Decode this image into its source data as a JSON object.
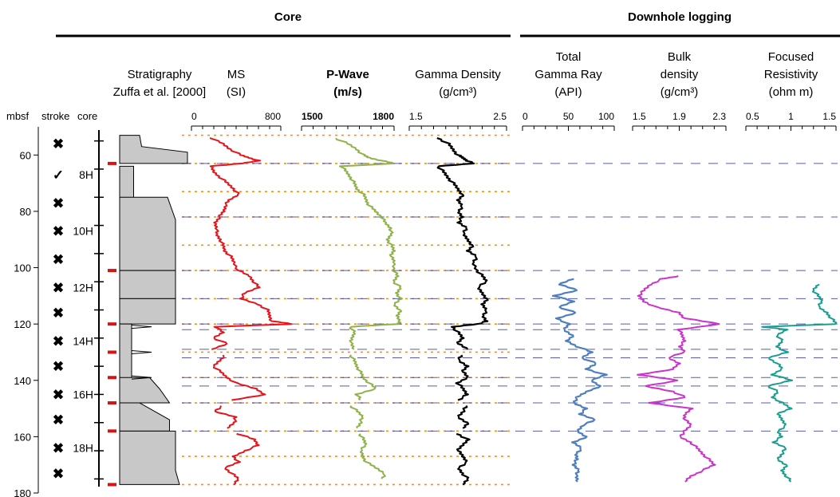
{
  "groups": {
    "core": "Core",
    "downhole": "Downhole logging"
  },
  "left_headers": {
    "depth": "mbsf",
    "stroke": "stroke",
    "core": "core"
  },
  "strat_header": {
    "line1": "Stratigraphy",
    "line2": "Zuffa et al. [2000]"
  },
  "depth_axis": {
    "min": 50,
    "max": 180,
    "ticks": [
      60,
      80,
      100,
      120,
      140,
      160,
      180
    ]
  },
  "stroke_marks": [
    {
      "depth": 56,
      "symbol": "✖"
    },
    {
      "depth": 67,
      "symbol": "✓"
    },
    {
      "depth": 77,
      "symbol": "✖"
    },
    {
      "depth": 87,
      "symbol": "✖"
    },
    {
      "depth": 97,
      "symbol": "✖"
    },
    {
      "depth": 107,
      "symbol": "✖"
    },
    {
      "depth": 116,
      "symbol": "✖"
    },
    {
      "depth": 126,
      "symbol": "✖"
    },
    {
      "depth": 135,
      "symbol": "✖"
    },
    {
      "depth": 145,
      "symbol": "✖"
    },
    {
      "depth": 154,
      "symbol": "✖"
    },
    {
      "depth": 164,
      "symbol": "✖"
    },
    {
      "depth": 173,
      "symbol": "✖"
    }
  ],
  "core_labels": [
    {
      "depth": 67,
      "label": "8H"
    },
    {
      "depth": 87,
      "label": "10H"
    },
    {
      "depth": 107,
      "label": "12H"
    },
    {
      "depth": 126,
      "label": "14H"
    },
    {
      "depth": 145,
      "label": "16H"
    },
    {
      "depth": 164,
      "label": "18H"
    }
  ],
  "core_breaks": [
    63,
    101,
    120,
    130,
    139,
    148,
    158,
    177
  ],
  "orange_depths": [
    53,
    63,
    73,
    82,
    92,
    101,
    111,
    120,
    130,
    139,
    148,
    158,
    167,
    177
  ],
  "blue_depths": [
    63,
    82,
    101,
    111,
    120,
    122,
    129,
    132,
    139,
    142,
    148,
    158
  ],
  "colors": {
    "ms": "#e8141b",
    "pwave": "#8fb34a",
    "gamma_density": "#000000",
    "gamma_ray": "#4f7fbd",
    "bulk_density": "#cc33cc",
    "resistivity": "#1a9e8f",
    "orange": "#f0922b",
    "blue": "#3b3fa8",
    "strat_fill": "#c8c8c8",
    "core_break": "#e01010"
  },
  "tracks": [
    {
      "key": "ms",
      "title_lines": [
        "MS",
        "(SI)"
      ],
      "bold": false,
      "ticks": [
        "0",
        "800"
      ],
      "range": [
        0,
        800
      ]
    },
    {
      "key": "pwave",
      "title_lines": [
        "P-Wave",
        "(m/s)"
      ],
      "bold": true,
      "ticks": [
        "1500",
        "1800"
      ],
      "range": [
        1500,
        1800
      ]
    },
    {
      "key": "gamma_density",
      "title_lines": [
        "Gamma Density",
        "(g/cm³)"
      ],
      "bold": false,
      "ticks": [
        "1.5",
        "2.5"
      ],
      "range": [
        1.5,
        2.5
      ]
    },
    {
      "key": "gamma_ray",
      "title_lines": [
        "Total",
        "Gamma Ray",
        "(API)"
      ],
      "bold": false,
      "ticks": [
        "0",
        "50",
        "100"
      ],
      "range": [
        0,
        100
      ]
    },
    {
      "key": "bulk_density",
      "title_lines": [
        "Bulk",
        "density",
        "(g/cm³)"
      ],
      "bold": false,
      "ticks": [
        "1.5",
        "1.9",
        "2.3"
      ],
      "range": [
        1.5,
        2.3
      ]
    },
    {
      "key": "resistivity",
      "title_lines": [
        "Focused",
        "Resistivity",
        "(ohm m)"
      ],
      "bold": false,
      "ticks": [
        "0.5",
        "1",
        "1.5"
      ],
      "range": [
        0.5,
        1.5
      ]
    }
  ],
  "chart_data": {
    "type": "line",
    "y_axis": {
      "label": "mbsf",
      "range": [
        50,
        180
      ],
      "inverted": true
    },
    "series": [
      {
        "name": "MS",
        "depth": [
          54,
          56,
          58,
          60,
          61,
          62,
          63,
          64,
          66,
          68,
          70,
          72,
          74,
          76,
          78,
          80,
          82,
          84,
          86,
          88,
          90,
          92,
          94,
          96,
          98,
          101,
          103,
          105,
          107,
          109,
          111,
          113,
          115,
          117,
          119,
          120,
          121,
          123,
          125,
          127,
          129,
          131,
          133,
          135,
          137,
          139,
          141,
          143,
          145,
          147,
          149,
          151,
          153,
          155,
          157,
          159,
          161,
          163,
          165,
          167,
          169,
          171,
          173,
          175,
          177
        ],
        "values": [
          180,
          280,
          350,
          440,
          520,
          600,
          450,
          170,
          200,
          260,
          320,
          380,
          420,
          340,
          300,
          290,
          250,
          210,
          230,
          220,
          260,
          280,
          300,
          350,
          380,
          420,
          520,
          560,
          600,
          480,
          440,
          600,
          680,
          700,
          720,
          900,
          220,
          280,
          200,
          320,
          180,
          300,
          250,
          200,
          260,
          320,
          400,
          580,
          660,
          360,
          280,
          200,
          400,
          380,
          320,
          420,
          560,
          600,
          480,
          380,
          420,
          300,
          360,
          420,
          380
        ]
      },
      {
        "name": "P-Wave",
        "depth": [
          54,
          56,
          58,
          60,
          61,
          62,
          63,
          64,
          66,
          68,
          70,
          72,
          74,
          76,
          78,
          80,
          82,
          84,
          86,
          88,
          90,
          92,
          94,
          96,
          98,
          101,
          103,
          105,
          107,
          109,
          111,
          113,
          115,
          117,
          119,
          120,
          121,
          123,
          125,
          127,
          129,
          131,
          133,
          135,
          137,
          139,
          141,
          143,
          145,
          147,
          149,
          151,
          153,
          155,
          157,
          159,
          161,
          163,
          165,
          167,
          169,
          171,
          173,
          175
        ],
        "values": [
          1610,
          1650,
          1680,
          1700,
          1720,
          1760,
          1800,
          1630,
          1645,
          1660,
          1670,
          1680,
          1700,
          1710,
          1720,
          1740,
          1760,
          1770,
          1790,
          1790,
          1780,
          1790,
          1800,
          1790,
          1800,
          1800,
          1810,
          1800,
          1820,
          1810,
          1820,
          1800,
          1820,
          1810,
          1820,
          1810,
          1660,
          1670,
          1665,
          1660,
          1670,
          1660,
          1670,
          1680,
          1690,
          1700,
          1720,
          1740,
          1680,
          1690,
          1660,
          1680,
          1700,
          1690,
          1680,
          1690,
          1700,
          1710,
          1690,
          1700,
          1710,
          1740,
          1770,
          1760
        ]
      },
      {
        "name": "Gamma Density",
        "depth": [
          54,
          56,
          58,
          60,
          61,
          62,
          63,
          64,
          66,
          68,
          70,
          72,
          74,
          76,
          78,
          80,
          82,
          84,
          86,
          88,
          90,
          92,
          94,
          96,
          98,
          101,
          103,
          105,
          107,
          109,
          111,
          113,
          115,
          117,
          119,
          120,
          121,
          123,
          125,
          127,
          129,
          131,
          133,
          135,
          137,
          139,
          141,
          143,
          145,
          147,
          149,
          151,
          153,
          155,
          157,
          159,
          161,
          163,
          165,
          167,
          169,
          171,
          173,
          175,
          177
        ],
        "values": [
          1.8,
          1.9,
          1.95,
          2.0,
          2.05,
          2.1,
          2.15,
          1.8,
          1.85,
          1.9,
          1.95,
          2.0,
          2.05,
          2.0,
          2.05,
          2.0,
          2.05,
          2.0,
          2.1,
          2.05,
          2.1,
          2.15,
          2.1,
          2.2,
          2.15,
          2.2,
          2.25,
          2.3,
          2.2,
          2.25,
          2.3,
          2.25,
          2.3,
          2.25,
          2.3,
          2.2,
          1.95,
          2.0,
          2.05,
          2.0,
          2.1,
          2.05,
          2.0,
          2.1,
          2.05,
          2.1,
          2.0,
          2.05,
          2.1,
          2.0,
          2.1,
          2.05,
          2.0,
          2.1,
          2.05,
          2.0,
          2.1,
          2.05,
          2.0,
          2.05,
          2.1,
          2.0,
          2.05,
          2.1,
          2.05
        ]
      },
      {
        "name": "Total Gamma Ray",
        "depth": [
          104,
          106,
          108,
          110,
          112,
          114,
          116,
          118,
          120,
          122,
          124,
          126,
          128,
          130,
          132,
          134,
          136,
          138,
          140,
          142,
          144,
          146,
          148,
          150,
          152,
          154,
          156,
          158,
          160,
          162,
          164,
          166,
          168,
          170,
          172,
          174,
          176
        ],
        "values": [
          55,
          40,
          60,
          35,
          55,
          40,
          58,
          38,
          50,
          45,
          55,
          48,
          60,
          75,
          65,
          80,
          70,
          90,
          75,
          85,
          70,
          60,
          55,
          70,
          62,
          80,
          65,
          60,
          70,
          55,
          65,
          58,
          60,
          55,
          62,
          58,
          60
        ]
      },
      {
        "name": "Bulk density",
        "depth": [
          103,
          104,
          106,
          108,
          110,
          112,
          114,
          116,
          118,
          120,
          122,
          124,
          126,
          128,
          130,
          132,
          134,
          136,
          138,
          140,
          142,
          144,
          146,
          148,
          150,
          152,
          154,
          156,
          158,
          160,
          162,
          164,
          166,
          168,
          170,
          172,
          174,
          176
        ],
        "values": [
          1.9,
          1.75,
          1.65,
          1.6,
          1.55,
          1.6,
          1.7,
          1.9,
          1.95,
          2.25,
          1.9,
          1.92,
          1.95,
          1.9,
          1.95,
          1.8,
          1.9,
          1.85,
          1.55,
          1.9,
          1.6,
          1.85,
          1.95,
          1.65,
          2.0,
          1.95,
          1.95,
          2.0,
          1.95,
          1.9,
          2.0,
          2.05,
          2.1,
          2.15,
          2.2,
          2.1,
          2.0,
          1.95
        ]
      },
      {
        "name": "Focused Resistivity",
        "depth": [
          106,
          108,
          110,
          112,
          114,
          116,
          118,
          120,
          121,
          122,
          124,
          126,
          128,
          130,
          132,
          134,
          136,
          138,
          140,
          142,
          144,
          146,
          148,
          150,
          152,
          154,
          156,
          158,
          160,
          162,
          164,
          166,
          168,
          170,
          172,
          174,
          176
        ],
        "values": [
          1.3,
          1.25,
          1.3,
          1.35,
          1.3,
          1.4,
          1.45,
          1.5,
          0.7,
          0.95,
          0.85,
          0.9,
          0.85,
          0.95,
          0.75,
          0.85,
          0.9,
          0.8,
          1.0,
          0.75,
          0.85,
          0.8,
          0.9,
          1.0,
          0.85,
          0.9,
          0.95,
          0.85,
          0.9,
          0.8,
          0.95,
          0.9,
          0.85,
          0.95,
          0.9,
          0.95,
          1.0
        ]
      }
    ]
  }
}
